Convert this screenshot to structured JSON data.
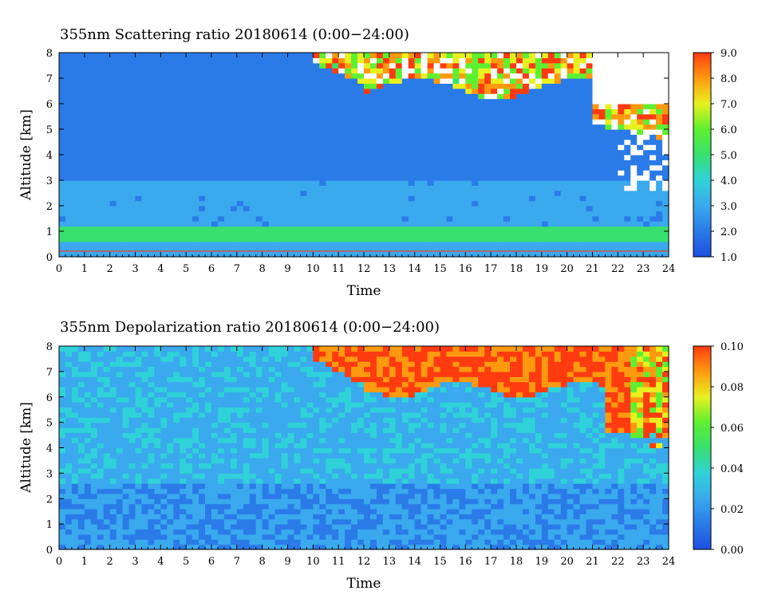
{
  "chart_data": [
    {
      "type": "heatmap",
      "title": "355nm Scattering ratio  20180614 (0:00−24:00)",
      "xlabel": "Time",
      "ylabel": "Altitude [km]",
      "xlim": [
        0,
        24
      ],
      "ylim": [
        0,
        8
      ],
      "x_ticks": [
        "0",
        "1",
        "2",
        "3",
        "4",
        "5",
        "6",
        "7",
        "8",
        "9",
        "10",
        "11",
        "12",
        "13",
        "14",
        "15",
        "16",
        "17",
        "18",
        "19",
        "20",
        "21",
        "22",
        "23",
        "24"
      ],
      "y_ticks": [
        "0",
        "1",
        "2",
        "3",
        "4",
        "5",
        "6",
        "7",
        "8"
      ],
      "colorbar": {
        "range": [
          1.0,
          9.0
        ],
        "ticks": [
          "1.0",
          "2.0",
          "3.0",
          "4.0",
          "5.0",
          "6.0",
          "7.0",
          "8.0",
          "9.0"
        ]
      },
      "colors": [
        "#1e4fe0",
        "#2a7be8",
        "#3aa9ee",
        "#2fd2d8",
        "#38e070",
        "#5ef030",
        "#e8f020",
        "#ff9a10",
        "#ff3b10"
      ],
      "no_data_color": "#ffffff"
    },
    {
      "type": "heatmap",
      "title": "355nm Depolarization ratio  20180614 (0:00−24:00)",
      "xlabel": "Time",
      "ylabel": "Altitude [km]",
      "xlim": [
        0,
        24
      ],
      "ylim": [
        0,
        8
      ],
      "x_ticks": [
        "0",
        "1",
        "2",
        "3",
        "4",
        "5",
        "6",
        "7",
        "8",
        "9",
        "10",
        "11",
        "12",
        "13",
        "14",
        "15",
        "16",
        "17",
        "18",
        "19",
        "20",
        "21",
        "22",
        "23",
        "24"
      ],
      "y_ticks": [
        "0",
        "1",
        "2",
        "3",
        "4",
        "5",
        "6",
        "7",
        "8"
      ],
      "colorbar": {
        "range": [
          0.0,
          0.1
        ],
        "ticks": [
          "0.00",
          "0.02",
          "0.04",
          "0.06",
          "0.08",
          "0.10"
        ]
      },
      "colors": [
        "#1e4fe0",
        "#2a7be8",
        "#3aa9ee",
        "#2fd2d8",
        "#38e070",
        "#5ef030",
        "#e8f020",
        "#ff9a10",
        "#ff3b10"
      ],
      "no_data_color": "#ffffff"
    }
  ]
}
